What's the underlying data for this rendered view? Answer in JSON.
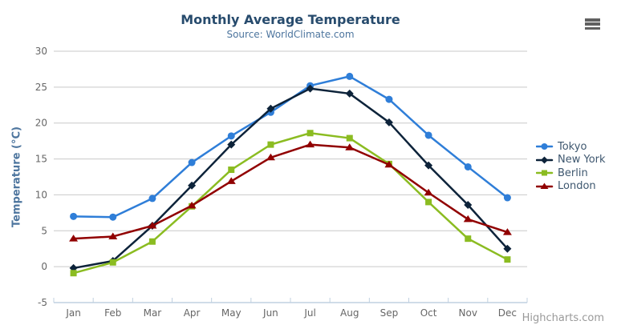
{
  "chart_data": {
    "type": "line",
    "title": "Monthly Average Temperature",
    "subtitle": "Source: WorldClimate.com",
    "categories": [
      "Jan",
      "Feb",
      "Mar",
      "Apr",
      "May",
      "Jun",
      "Jul",
      "Aug",
      "Sep",
      "Oct",
      "Nov",
      "Dec"
    ],
    "xlabel": "",
    "ylabel": "Temperature (°C)",
    "ylim": [
      -5,
      30
    ],
    "ytick_step": 5,
    "grid": true,
    "legend_position": "right-middle",
    "series": [
      {
        "name": "Tokyo",
        "color": "#2f7ed8",
        "marker": "circle",
        "values": [
          7.0,
          6.9,
          9.5,
          14.5,
          18.2,
          21.5,
          25.2,
          26.5,
          23.3,
          18.3,
          13.9,
          9.6
        ]
      },
      {
        "name": "New York",
        "color": "#0d233a",
        "marker": "diamond",
        "values": [
          -0.2,
          0.8,
          5.7,
          11.3,
          17.0,
          22.0,
          24.8,
          24.1,
          20.1,
          14.1,
          8.6,
          2.5
        ]
      },
      {
        "name": "Berlin",
        "color": "#8bbc21",
        "marker": "square",
        "values": [
          -0.9,
          0.6,
          3.5,
          8.4,
          13.5,
          17.0,
          18.6,
          17.9,
          14.3,
          9.0,
          3.9,
          1.0
        ]
      },
      {
        "name": "London",
        "color": "#910000",
        "marker": "triangle",
        "values": [
          3.9,
          4.2,
          5.7,
          8.5,
          11.9,
          15.2,
          17.0,
          16.6,
          14.2,
          10.3,
          6.6,
          4.8
        ]
      }
    ]
  },
  "credit": "Highcharts.com",
  "icons": {
    "context_menu": "hamburger-menu-icon"
  },
  "style": {
    "title_color": "#274b6d",
    "subtitle_color": "#4d759e",
    "axis_title_color": "#4d759e",
    "tick_label_color": "#666666",
    "grid_color": "#c9c9c9",
    "axis_line_color": "#c0d0e0",
    "legend_text_color": "#3e576f",
    "credit_color": "#999999",
    "menu_icon_color": "#606060",
    "background": "#ffffff"
  }
}
